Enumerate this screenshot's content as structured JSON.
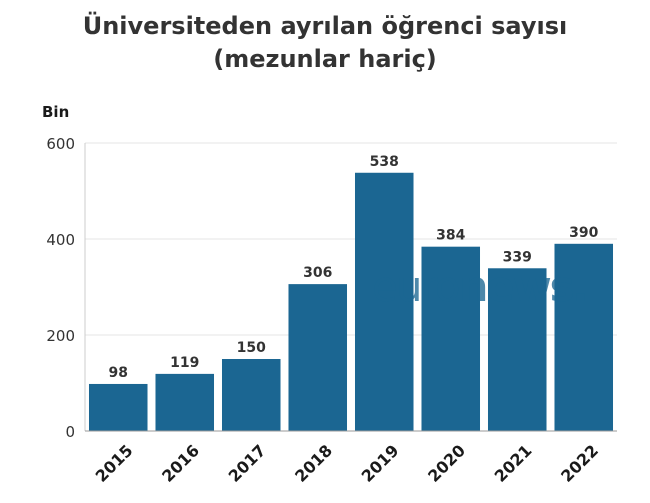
{
  "title_line1": "Üniversiteden ayrılan öğrenci sayısı",
  "title_line2": "(mezunlar hariç)",
  "unit_label": "Bin",
  "watermark": {
    "part1": "euro",
    "part2": "news."
  },
  "colors": {
    "bar": "#1b6692",
    "grid": "#e6e6e6",
    "text": "#333333"
  },
  "chart_data": {
    "type": "bar",
    "categories": [
      "2015",
      "2016",
      "2017",
      "2018",
      "2019",
      "2020",
      "2021",
      "2022"
    ],
    "values": [
      98,
      119,
      150,
      306,
      538,
      384,
      339,
      390
    ],
    "title": "Üniversiteden ayrılan öğrenci sayısı (mezunlar hariç)",
    "ylabel": "Bin",
    "ylim": [
      0,
      600
    ],
    "yticks": [
      0,
      200,
      400,
      600
    ],
    "grid": true,
    "legend": "none"
  }
}
